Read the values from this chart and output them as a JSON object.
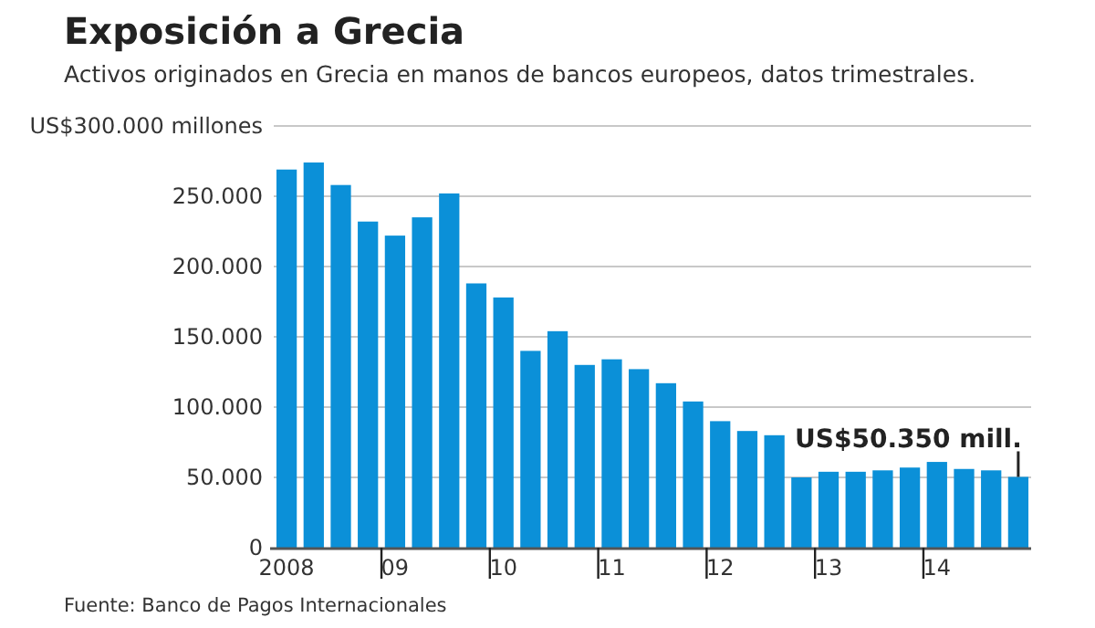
{
  "chart_data": {
    "type": "bar",
    "title": "Exposición a Grecia",
    "subtitle": "Activos originados en Grecia en manos de bancos europeos, datos trimestrales.",
    "categories": [
      "2008",
      null,
      null,
      null,
      "09",
      null,
      null,
      null,
      "10",
      null,
      null,
      null,
      "11",
      null,
      null,
      null,
      "12",
      null,
      null,
      null,
      "13",
      null,
      null,
      null,
      "14",
      null,
      null,
      null
    ],
    "values": [
      269000,
      274000,
      258000,
      232000,
      222000,
      235000,
      252000,
      188000,
      178000,
      140000,
      154000,
      130000,
      134000,
      127000,
      117000,
      104000,
      90000,
      83000,
      80000,
      50000,
      54000,
      54000,
      55000,
      57000,
      61000,
      56000,
      55000,
      50350
    ],
    "color": "#0b90d8",
    "ylim": [
      0,
      300000
    ],
    "yticks": [
      {
        "value": 0,
        "label": "0"
      },
      {
        "value": 50000,
        "label": "50.000"
      },
      {
        "value": 100000,
        "label": "100.000"
      },
      {
        "value": 150000,
        "label": "150.000"
      },
      {
        "value": 200000,
        "label": "200.000"
      },
      {
        "value": 250000,
        "label": "250.000"
      },
      {
        "value": 300000,
        "label": "US$300.000 millones"
      }
    ],
    "grid": "y",
    "annotations": [
      {
        "text": "US$50.350 mill.",
        "y": 50350
      },
      "Fuente: Banco de Pagos Internacionales"
    ]
  }
}
